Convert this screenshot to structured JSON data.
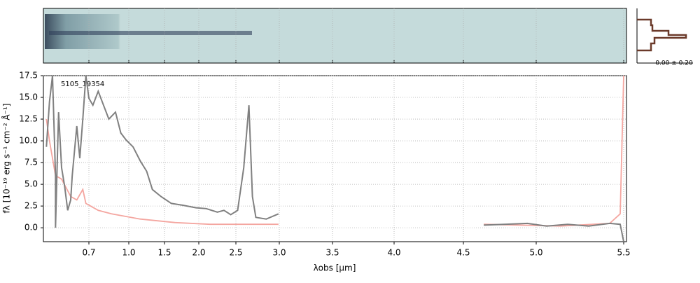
{
  "chart_data": {
    "type": "line",
    "annotation": "5105_19354",
    "xlabel": "λobs [μm]",
    "ylabel": "fλ [10⁻¹⁹ erg s⁻¹ cm⁻² Å⁻¹]",
    "side_label": "0.00 ± 0.20",
    "xlim": [
      0.55,
      5.52
    ],
    "ylim": [
      -1.6,
      17.5
    ],
    "xticks": [
      0.7,
      {
        "value": 1,
        "label": "1.0"
      },
      1.5,
      {
        "value": 2,
        "label": "2.0"
      },
      2.5,
      {
        "value": 3,
        "label": "3.0"
      },
      3.5,
      {
        "value": 4,
        "label": "4.0"
      },
      4.5,
      {
        "value": 5,
        "label": "5.0"
      },
      5.5
    ],
    "yticks": [
      {
        "value": 0,
        "label": "0.0"
      },
      2.5,
      {
        "value": 5,
        "label": "5.0"
      },
      7.5,
      {
        "value": 10,
        "label": "10.0"
      },
      12.5,
      {
        "value": 15,
        "label": "15.0"
      },
      17.5
    ],
    "grid": true,
    "series": [
      {
        "color": "#808080",
        "x": [
          0.56,
          0.57,
          0.58,
          0.59,
          0.59,
          0.6,
          0.61,
          0.62,
          0.63,
          0.64,
          0.645,
          0.66,
          0.67,
          0.68,
          0.69,
          0.7,
          0.73,
          0.77,
          0.81,
          0.85,
          0.9,
          0.94,
          0.98,
          1.06,
          1.16,
          1.25,
          1.33,
          1.45,
          1.6,
          1.76,
          1.96,
          2.1,
          2.25,
          2.34,
          2.43,
          2.52,
          2.59,
          2.65,
          2.69,
          2.73,
          2.85,
          2.99,
          null,
          4.64,
          4.78,
          4.94,
          5.06,
          5.18,
          5.3,
          5.42,
          5.48,
          5.5
        ],
        "values": [
          9.3,
          14.5,
          17.5,
          6,
          0,
          13.3,
          6.9,
          4.8,
          2,
          3.2,
          6,
          11.7,
          8,
          12.5,
          17.5,
          14.9,
          14.1,
          15.7,
          14.1,
          12.5,
          13.3,
          10.9,
          10.1,
          9.3,
          7.7,
          6.5,
          4.4,
          3.6,
          2.8,
          2.6,
          2.3,
          2.2,
          1.8,
          2,
          1.5,
          2,
          6.9,
          14.1,
          3.6,
          1.2,
          1,
          1.6,
          null,
          0.3,
          0.4,
          0.5,
          0.2,
          0.4,
          0.2,
          0.5,
          0.4,
          -1.6
        ]
      },
      {
        "color": "#f4a6a0",
        "x": [
          0.56,
          0.57,
          0.59,
          0.61,
          0.64,
          0.66,
          0.68,
          0.69,
          0.77,
          0.87,
          1.16,
          1.65,
          2.15,
          2.99,
          null,
          4.64,
          5.14,
          5.42,
          5.48,
          5.5
        ],
        "values": [
          12.5,
          10,
          6,
          5.6,
          3.6,
          3.2,
          4.4,
          2.8,
          2,
          1.6,
          1,
          0.6,
          0.4,
          0.4,
          null,
          0.4,
          0.2,
          0.5,
          1.6,
          17.5
        ]
      }
    ]
  }
}
